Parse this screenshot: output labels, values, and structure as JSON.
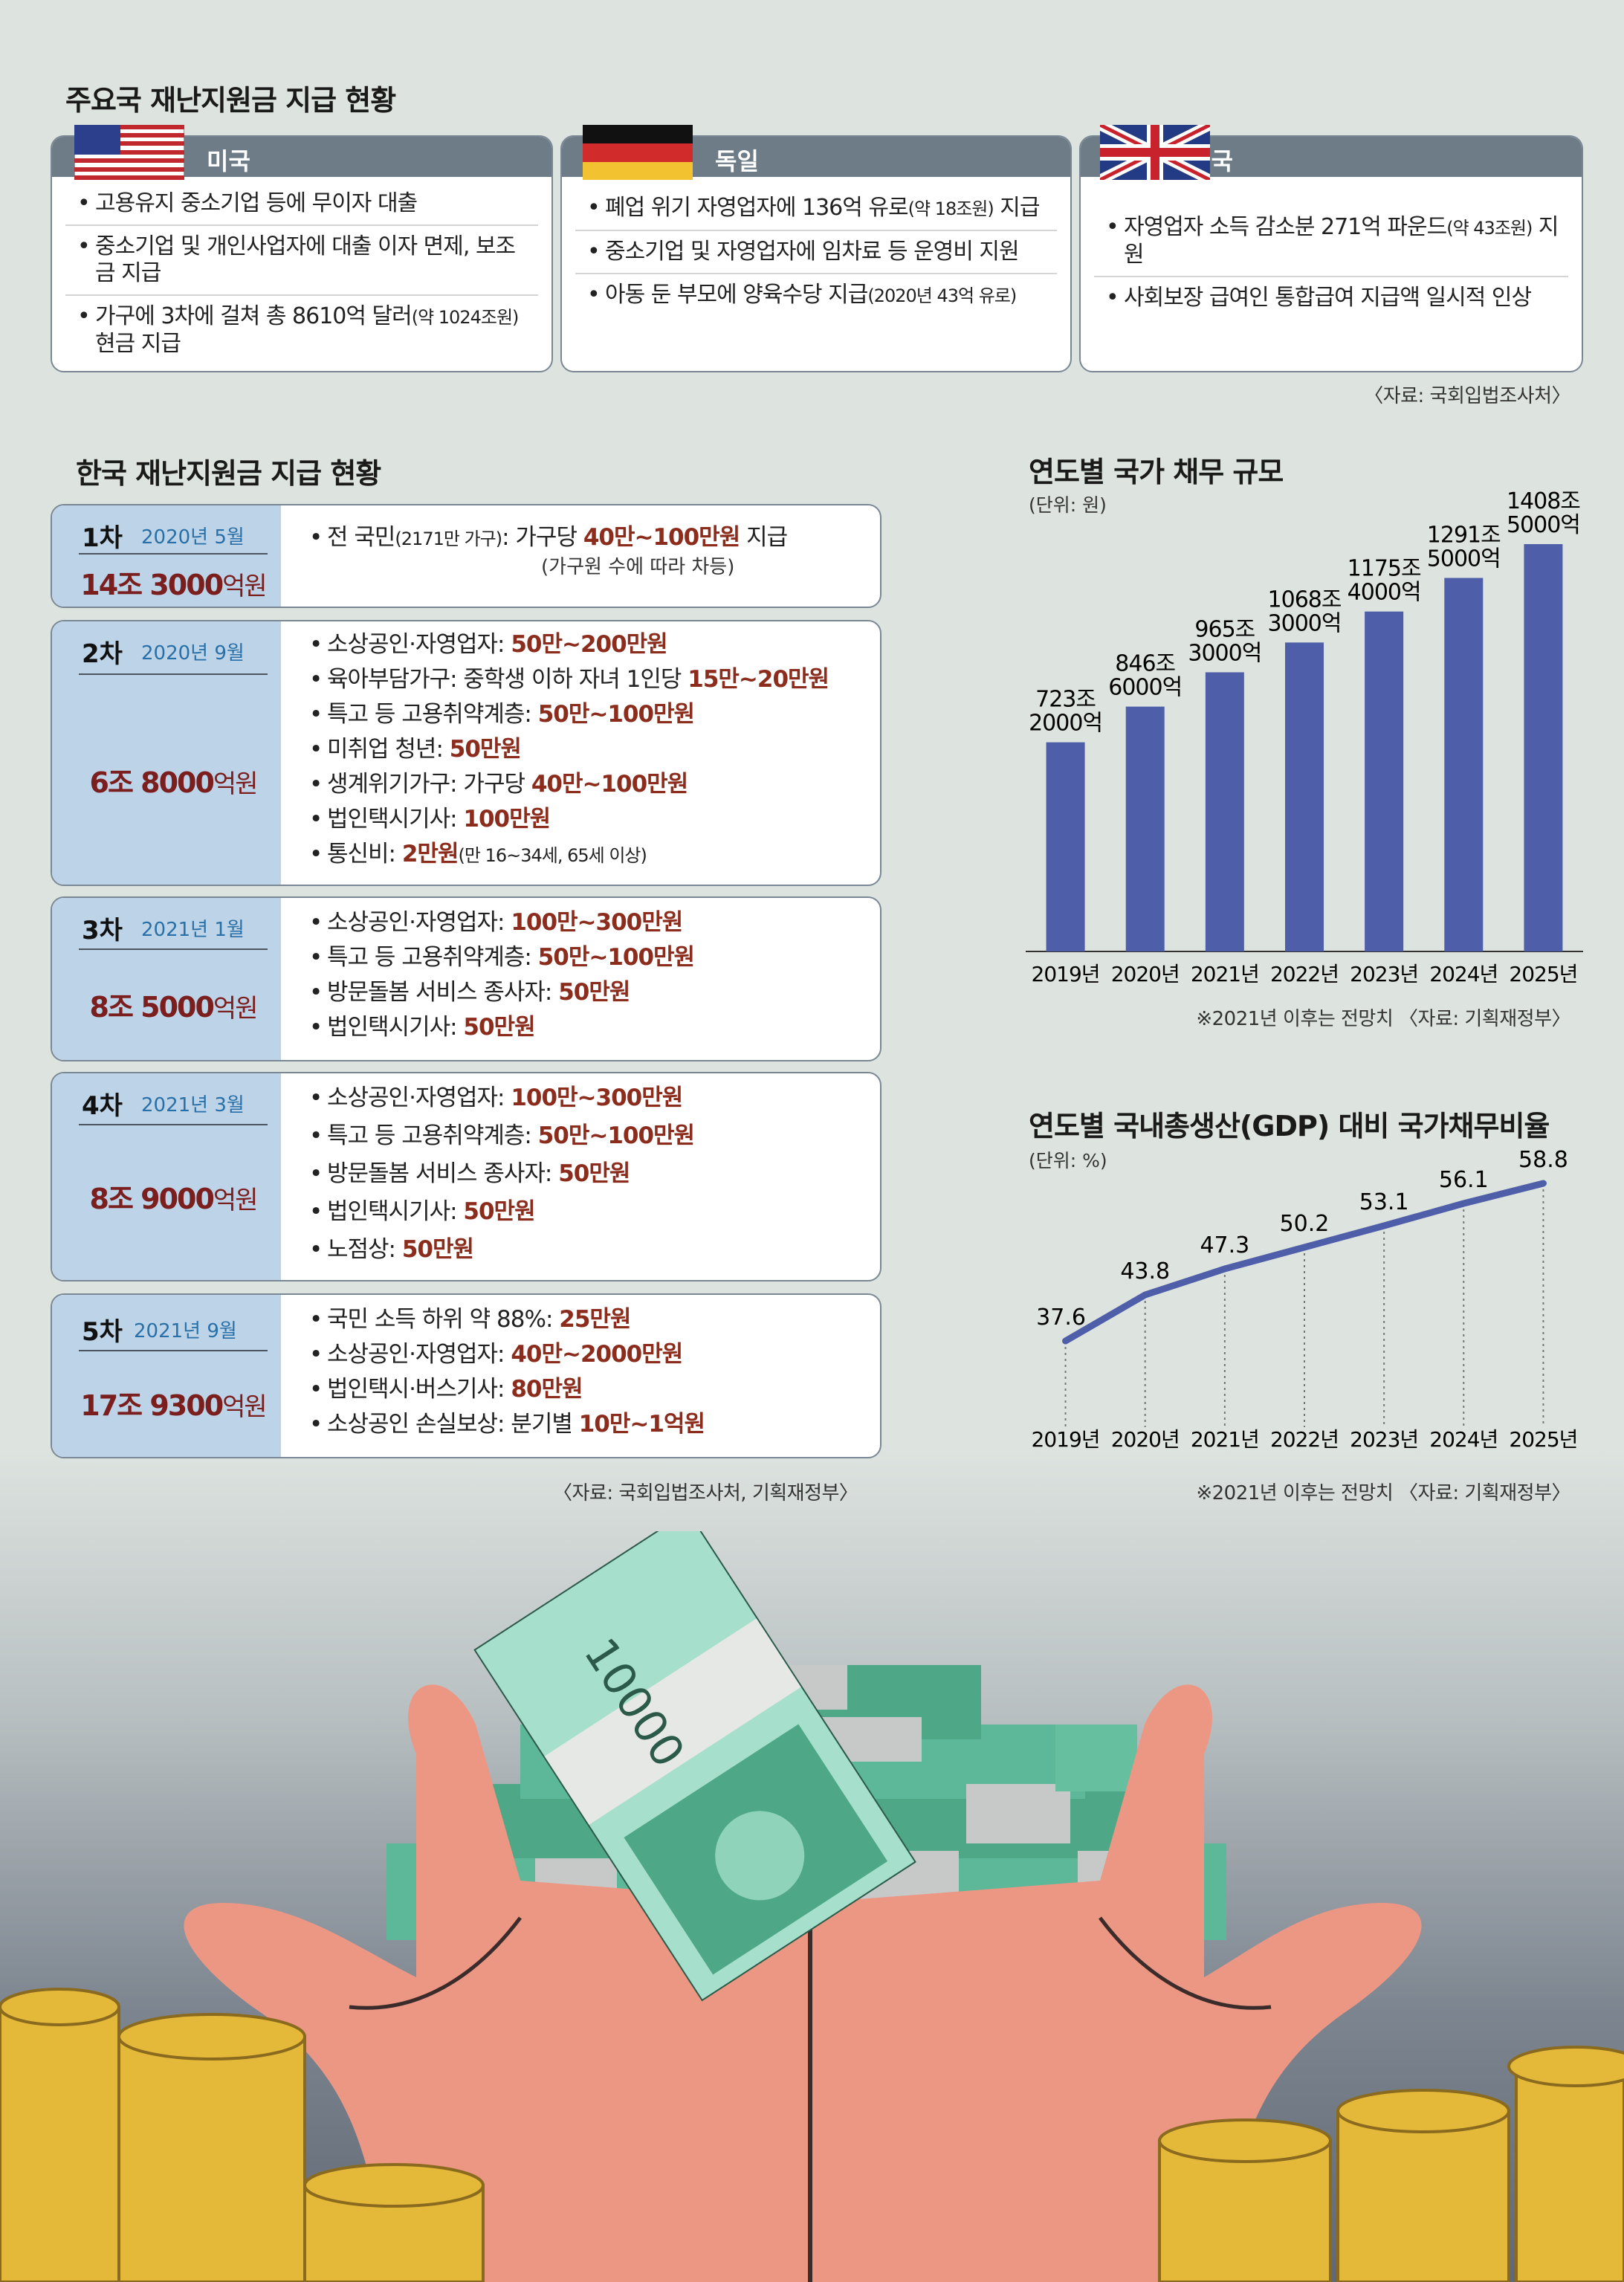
{
  "intl": {
    "title": "주요국 재난지원금 지급 현황",
    "source": "〈자료: 국회입법조사처〉",
    "countries": [
      {
        "name": "미국",
        "flag": "us-flag-icon",
        "items": [
          {
            "text": "고용유지 중소기업 등에 무이자 대출",
            "note": ""
          },
          {
            "text": "중소기업 및 개인사업자에 대출 이자 면제, 보조금 지급",
            "note": ""
          },
          {
            "text": "가구에 3차에 걸쳐 총 8610억 달러",
            "note": "(약 1024조원)",
            "tail": " 현금 지급"
          }
        ]
      },
      {
        "name": "독일",
        "flag": "germany-flag-icon",
        "items": [
          {
            "text": "폐업 위기 자영업자에 136억 유로",
            "note": "(약 18조원)",
            "tail": " 지급"
          },
          {
            "text": "중소기업 및 자영업자에 임차료 등 운영비 지원",
            "note": ""
          },
          {
            "text": "아동 둔 부모에 양육수당 지급",
            "note": "(2020년 43억 유로)"
          }
        ]
      },
      {
        "name": "영국",
        "flag": "uk-flag-icon",
        "items": [
          {
            "text": "자영업자 소득 감소분 271억 파운드",
            "note": "(약 43조원)",
            "tail": " 지원"
          },
          {
            "text": "사회보장 급여인 통합급여 지급액 일시적 인상",
            "note": ""
          }
        ]
      }
    ]
  },
  "korea": {
    "title": "한국 재난지원금 지급 현황",
    "source": "〈자료: 국회입법조사처, 기획재정부〉",
    "rounds": [
      {
        "num": "1차",
        "date": "2020년 5월",
        "amount": "14조 3000",
        "unit": "억원",
        "items": [
          {
            "a": "전 국민",
            "s": "(2171만 가구)",
            "b": ":  가구당 ",
            "v": "40만~100만원",
            "c": " 지급"
          },
          {
            "a": "(가구원 수에 따라 차등)"
          }
        ]
      },
      {
        "num": "2차",
        "date": "2020년 9월",
        "amount": "6조 8000",
        "unit": "억원",
        "items": [
          {
            "a": "소상공인·자영업자: ",
            "v": "50만~200만원"
          },
          {
            "a": "육아부담가구: 중학생 이하 자녀 1인당 ",
            "v": "15만~20만원"
          },
          {
            "a": "특고 등 고용취약계층: ",
            "v": "50만~100만원"
          },
          {
            "a": "미취업 청년: ",
            "v": "50만원"
          },
          {
            "a": "생계위기가구: 가구당 ",
            "v": "40만~100만원"
          },
          {
            "a": "법인택시기사: ",
            "v": "100만원"
          },
          {
            "a": "통신비: ",
            "v": "2만원",
            "s": "(만 16~34세, 65세 이상)"
          }
        ]
      },
      {
        "num": "3차",
        "date": "2021년 1월",
        "amount": "8조 5000",
        "unit": "억원",
        "items": [
          {
            "a": "소상공인·자영업자: ",
            "v": "100만~300만원"
          },
          {
            "a": "특고 등 고용취약계층: ",
            "v": "50만~100만원"
          },
          {
            "a": "방문돌봄 서비스 종사자: ",
            "v": "50만원"
          },
          {
            "a": "법인택시기사: ",
            "v": "50만원"
          }
        ]
      },
      {
        "num": "4차",
        "date": "2021년 3월",
        "amount": "8조 9000",
        "unit": "억원",
        "items": [
          {
            "a": "소상공인·자영업자: ",
            "v": "100만~300만원"
          },
          {
            "a": "특고 등 고용취약계층: ",
            "v": "50만~100만원"
          },
          {
            "a": "방문돌봄 서비스 종사자: ",
            "v": "50만원"
          },
          {
            "a": "법인택시기사: ",
            "v": "50만원"
          },
          {
            "a": "노점상: ",
            "v": "50만원"
          }
        ]
      },
      {
        "num": "5차",
        "date": "2021년 9월",
        "amount": "17조 9300",
        "unit": "억원",
        "items": [
          {
            "a": "국민 소득 하위 약 88%: ",
            "v": "25만원"
          },
          {
            "a": "소상공인·자영업자: ",
            "v": "40만~2000만원"
          },
          {
            "a": "법인택시·버스기사: ",
            "v": "80만원"
          },
          {
            "a": "소상공인 손실보상: 분기별 ",
            "v": "10만~1억원"
          }
        ]
      }
    ]
  },
  "chart_data": [
    {
      "type": "bar",
      "title": "연도별 국가 채무 규모",
      "unit": "(단위: 원)",
      "categories": [
        "2019년",
        "2020년",
        "2021년",
        "2022년",
        "2023년",
        "2024년",
        "2025년"
      ],
      "values": [
        723.2,
        846.6,
        965.3,
        1068.3,
        1175.4,
        1291.5,
        1408.5
      ],
      "labels": [
        [
          "723조",
          "2000억"
        ],
        [
          "846조",
          "6000억"
        ],
        [
          "965조",
          "3000억"
        ],
        [
          "1068조",
          "3000억"
        ],
        [
          "1175조",
          "4000억"
        ],
        [
          "1291조",
          "5000억"
        ],
        [
          "1408조",
          "5000억"
        ]
      ],
      "color": "#4f5ea8",
      "note": "※2021년 이후는 전망치 〈자료: 기획재정부〉"
    },
    {
      "type": "line",
      "title": "연도별 국내총생산(GDP) 대비 국가채무비율",
      "unit": "(단위: %)",
      "categories": [
        "2019년",
        "2020년",
        "2021년",
        "2022년",
        "2023년",
        "2024년",
        "2025년"
      ],
      "values": [
        37.6,
        43.8,
        47.3,
        50.2,
        53.1,
        56.1,
        58.8
      ],
      "color": "#4f5ea8",
      "note": "※2021년 이후는 전망치 〈자료: 기획재정부〉"
    }
  ],
  "illustration": {
    "banknote_text": "10000"
  }
}
